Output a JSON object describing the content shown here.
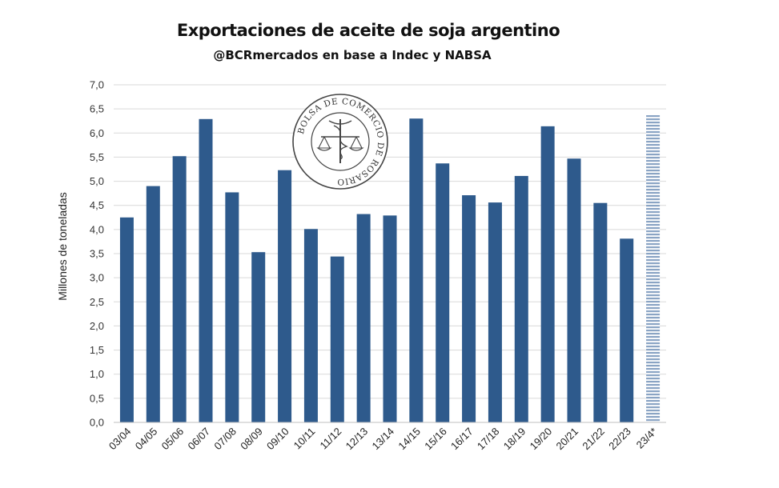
{
  "chart_data": {
    "type": "bar",
    "title": "Exportaciones de aceite de soja argentino",
    "subtitle": "@BCRmercados en base a Indec y NABSA",
    "ylabel": "Millones de toneladas",
    "xlabel": "",
    "ylim": [
      0,
      7
    ],
    "yticks": [
      "0,0",
      "0,5",
      "1,0",
      "1,5",
      "2,0",
      "2,5",
      "3,0",
      "3,5",
      "4,0",
      "4,5",
      "5,0",
      "5,5",
      "6,0",
      "6,5",
      "7,0"
    ],
    "categories": [
      "03/04",
      "04/05",
      "05/06",
      "06/07",
      "07/08",
      "08/09",
      "09/10",
      "10/11",
      "11/12",
      "12/13",
      "13/14",
      "14/15",
      "15/16",
      "16/17",
      "17/18",
      "18/19",
      "19/20",
      "20/21",
      "21/22",
      "22/23",
      "23/4*"
    ],
    "values": [
      4.25,
      4.9,
      5.52,
      6.29,
      4.77,
      3.53,
      5.23,
      4.01,
      3.44,
      4.32,
      4.29,
      6.3,
      5.37,
      4.71,
      4.56,
      5.11,
      6.14,
      5.47,
      4.55,
      3.81,
      6.37
    ],
    "bar_color": "#2e5a8c",
    "projected_last_bar": true,
    "projected_color": "#8aa4c4",
    "grid": true,
    "watermark_text": "BOLSA DE COMERCIO DE ROSARIO"
  }
}
